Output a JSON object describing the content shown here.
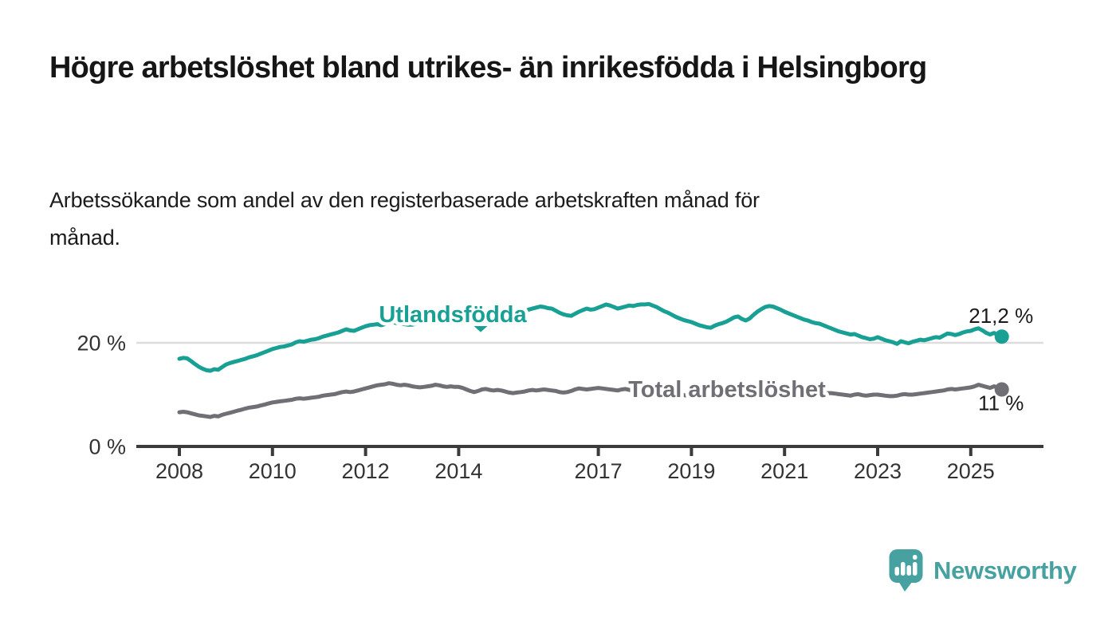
{
  "header": {
    "title": "Högre arbetslöshet bland utrikes- än inrikesfödda i Helsingborg",
    "subtitle": "Arbetssökande som andel av den registerbaserade arbetskraften månad för månad."
  },
  "chart_data": {
    "type": "line",
    "title": "Högre arbetslöshet bland utrikes- än inrikesfödda i Helsingborg",
    "x_unit": "month",
    "x_start": "2008-01",
    "x_end": "2025-09",
    "x_ticks": [
      "2008",
      "2010",
      "2012",
      "2014",
      "2017",
      "2019",
      "2021",
      "2023",
      "2025"
    ],
    "y_ticks": [
      {
        "value": 20,
        "label": "20 %",
        "style": "gridline"
      },
      {
        "value": 0,
        "label": "0 %",
        "style": "axis"
      }
    ],
    "ylim": [
      0,
      30
    ],
    "grid": "single horizontal gridline at 20%",
    "legend_position": "inline-labels-on-lines",
    "colors": {
      "utlandsfodda": "#18A094",
      "total": "#6F6F75",
      "axis": "#3B3B3B",
      "gridline": "#DDDDDD",
      "value_label": "#1A1A1A"
    },
    "series": [
      {
        "name": "Utlandsfödda",
        "color": "#18A094",
        "end_label": "21,2 %",
        "end_value": 21.2,
        "values": [
          16.9,
          17.1,
          17.0,
          16.5,
          15.9,
          15.4,
          15.0,
          14.7,
          14.6,
          14.9,
          14.8,
          15.3,
          15.8,
          16.1,
          16.3,
          16.5,
          16.7,
          16.9,
          17.2,
          17.4,
          17.6,
          17.9,
          18.2,
          18.5,
          18.8,
          19.0,
          19.2,
          19.3,
          19.5,
          19.7,
          20.1,
          20.3,
          20.2,
          20.4,
          20.6,
          20.7,
          20.9,
          21.2,
          21.4,
          21.6,
          21.8,
          22.0,
          22.3,
          22.6,
          22.4,
          22.3,
          22.6,
          22.9,
          23.2,
          23.4,
          23.5,
          23.6,
          23.4,
          23.6,
          23.9,
          24.0,
          23.8,
          23.7,
          23.6,
          23.5,
          23.5,
          23.7,
          23.9,
          24.1,
          24.3,
          24.5,
          24.8,
          25.1,
          24.9,
          24.7,
          24.8,
          24.9,
          24.9,
          25.1,
          25.3,
          25.2,
          25.0,
          25.1,
          25.4,
          25.6,
          25.4,
          25.3,
          25.5,
          25.7,
          25.8,
          26.0,
          26.2,
          26.0,
          25.8,
          26.0,
          26.4,
          26.6,
          26.8,
          27.0,
          26.9,
          26.7,
          26.6,
          26.2,
          25.8,
          25.5,
          25.3,
          25.2,
          25.6,
          26.0,
          26.3,
          26.6,
          26.4,
          26.5,
          26.8,
          27.1,
          27.4,
          27.2,
          26.9,
          26.6,
          26.8,
          27.0,
          27.2,
          27.1,
          27.3,
          27.4,
          27.4,
          27.5,
          27.2,
          26.9,
          26.5,
          26.1,
          25.8,
          25.4,
          25.0,
          24.7,
          24.4,
          24.2,
          24.0,
          23.7,
          23.4,
          23.2,
          23.0,
          22.9,
          23.3,
          23.6,
          23.8,
          24.1,
          24.5,
          24.9,
          25.1,
          24.6,
          24.3,
          24.7,
          25.4,
          26.0,
          26.5,
          26.9,
          27.1,
          27.0,
          26.7,
          26.4,
          26.0,
          25.7,
          25.4,
          25.1,
          24.8,
          24.5,
          24.3,
          24.0,
          23.8,
          23.7,
          23.4,
          23.1,
          22.8,
          22.5,
          22.2,
          22.0,
          21.8,
          21.6,
          21.7,
          21.4,
          21.1,
          20.9,
          20.7,
          20.8,
          21.1,
          20.8,
          20.5,
          20.3,
          20.1,
          19.8,
          20.3,
          20.1,
          19.9,
          20.2,
          20.4,
          20.6,
          20.5,
          20.7,
          20.9,
          21.1,
          21.0,
          21.4,
          21.8,
          21.7,
          21.5,
          21.7,
          22.0,
          22.2,
          22.3,
          22.6,
          22.8,
          22.4,
          21.9,
          21.6,
          21.9,
          21.5,
          21.2
        ]
      },
      {
        "name": "Total arbetslöshet",
        "color": "#6F6F75",
        "end_label": "11 %",
        "end_value": 11.0,
        "values": [
          6.6,
          6.7,
          6.6,
          6.4,
          6.2,
          6.0,
          5.9,
          5.8,
          5.7,
          5.9,
          5.8,
          6.1,
          6.3,
          6.5,
          6.7,
          6.9,
          7.1,
          7.3,
          7.5,
          7.6,
          7.7,
          7.9,
          8.1,
          8.3,
          8.5,
          8.6,
          8.7,
          8.8,
          8.9,
          9.0,
          9.2,
          9.3,
          9.2,
          9.3,
          9.4,
          9.5,
          9.6,
          9.8,
          9.9,
          10.0,
          10.1,
          10.3,
          10.5,
          10.6,
          10.5,
          10.6,
          10.8,
          11.0,
          11.2,
          11.4,
          11.6,
          11.8,
          11.9,
          12.0,
          12.2,
          12.1,
          11.9,
          11.8,
          11.9,
          11.8,
          11.6,
          11.5,
          11.4,
          11.5,
          11.6,
          11.7,
          11.9,
          11.8,
          11.6,
          11.5,
          11.6,
          11.5,
          11.5,
          11.3,
          11.0,
          10.7,
          10.5,
          10.7,
          11.0,
          11.1,
          10.9,
          10.8,
          10.9,
          10.8,
          10.6,
          10.4,
          10.3,
          10.4,
          10.5,
          10.6,
          10.8,
          10.9,
          10.8,
          10.9,
          11.0,
          10.9,
          10.8,
          10.7,
          10.5,
          10.4,
          10.5,
          10.7,
          11.0,
          11.2,
          11.1,
          11.0,
          11.1,
          11.2,
          11.3,
          11.2,
          11.1,
          11.0,
          10.9,
          10.8,
          11.0,
          11.1,
          10.9,
          10.8,
          10.7,
          10.6,
          10.5,
          10.4,
          10.3,
          10.2,
          10.1,
          10.0,
          10.2,
          10.3,
          10.1,
          10.0,
          9.9,
          9.8,
          9.8,
          9.7,
          9.6,
          9.5,
          9.5,
          9.6,
          9.8,
          9.9,
          9.8,
          9.8,
          9.9,
          10.0,
          10.2,
          10.4,
          10.8,
          11.4,
          11.9,
          12.2,
          12.4,
          12.3,
          12.1,
          11.9,
          11.7,
          11.5,
          11.4,
          11.2,
          11.0,
          10.8,
          10.6,
          10.5,
          10.6,
          10.5,
          10.3,
          10.2,
          10.2,
          10.3,
          10.3,
          10.2,
          10.1,
          10.0,
          9.9,
          9.8,
          10.0,
          10.1,
          9.9,
          9.8,
          9.9,
          10.0,
          10.0,
          9.9,
          9.8,
          9.7,
          9.7,
          9.8,
          10.0,
          10.1,
          10.0,
          10.0,
          10.1,
          10.2,
          10.3,
          10.4,
          10.5,
          10.6,
          10.7,
          10.8,
          11.0,
          11.1,
          11.0,
          11.1,
          11.2,
          11.3,
          11.4,
          11.6,
          11.9,
          11.7,
          11.5,
          11.3,
          11.6,
          11.4,
          11.0
        ]
      }
    ]
  },
  "footer": {
    "brand": "Newsworthy",
    "brand_color": "#47A1A0"
  }
}
